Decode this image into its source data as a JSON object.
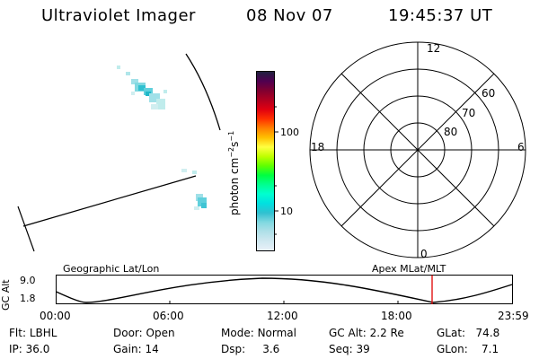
{
  "header": {
    "instrument": "Ultraviolet Imager",
    "date": "08 Nov 07",
    "time": "19:45:37 UT"
  },
  "colorbar": {
    "unit_prefix": "photon cm",
    "exp1": "−2",
    "s": "s",
    "exp2": "−1",
    "ticks": [
      "100",
      "10"
    ],
    "colors": [
      "#202040",
      "#500050",
      "#800030",
      "#b00020",
      "#e00010",
      "#ff3000",
      "#ff8000",
      "#ffc000",
      "#ffff40",
      "#c0ff00",
      "#60ff00",
      "#00ff40",
      "#00ff90",
      "#00ffd0",
      "#00e0e0",
      "#30c0d0",
      "#80d8e0",
      "#b0e0e8",
      "#d0e8f0",
      "#e8f0f8"
    ]
  },
  "polar_plot": {
    "mlt_labels": [
      "12",
      "18",
      "6",
      "0"
    ],
    "lat_labels": [
      "60",
      "70",
      "80"
    ]
  },
  "timeline": {
    "left_label": "Geographic Lat/Lon",
    "right_label": "Apex MLat/MLT",
    "axis_title": "GC Alt",
    "y_max": "9.0",
    "y_min": "1.8",
    "x_ticks": [
      "00:00",
      "06:00",
      "12:00",
      "18:00",
      "23:59"
    ],
    "marker_color": "#e00000"
  },
  "status": {
    "flt_label": "Flt:",
    "flt_value": "LBHL",
    "ip_label": "IP:",
    "ip_value": "36.0",
    "door_label": "Door:",
    "door_value": "Open",
    "gain_label": "Gain:",
    "gain_value": "14",
    "mode_label": "Mode:",
    "mode_value": "Normal",
    "dsp_label": "Dsp:",
    "dsp_value": "3.6",
    "gcalt_label": "GC Alt:",
    "gcalt_value": "2.2 Re",
    "seq_label": "Seq:",
    "seq_value": "39",
    "glat_label": "GLat:",
    "glat_value": "74.8",
    "glon_label": "GLon:",
    "glon_value": "7.1"
  }
}
